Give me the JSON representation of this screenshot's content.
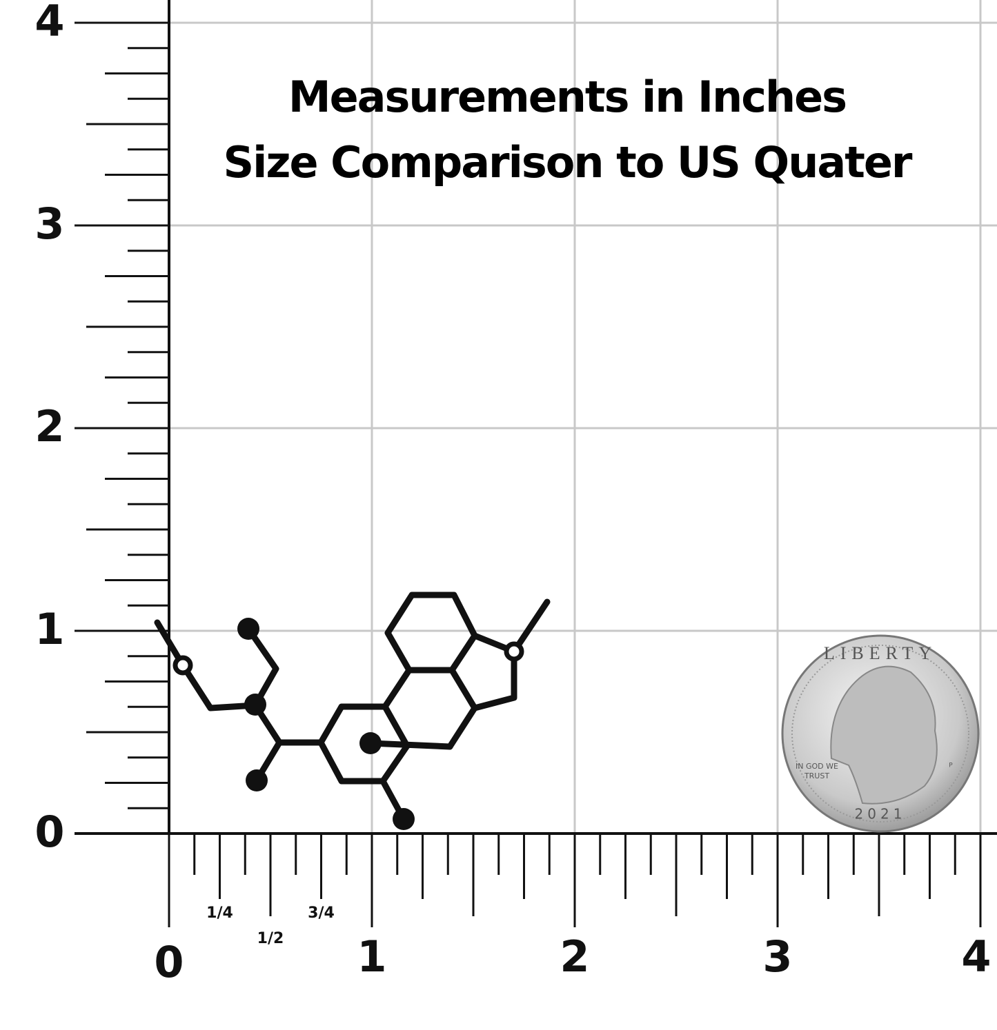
{
  "title": {
    "line1": "Measurements in Inches",
    "line2": "Size Comparison to US Quater"
  },
  "ruler": {
    "y_labels": [
      "0",
      "1",
      "2",
      "3",
      "4"
    ],
    "x_labels": [
      "0",
      "1",
      "2",
      "3",
      "4"
    ],
    "fraction_labels": [
      "1/4",
      "1/2",
      "3/4"
    ]
  },
  "coin": {
    "top_text": "LIBERTY",
    "motto_line1": "IN GOD WE",
    "motto_line2": "TRUST",
    "year": "2021",
    "mint_mark": "P"
  }
}
